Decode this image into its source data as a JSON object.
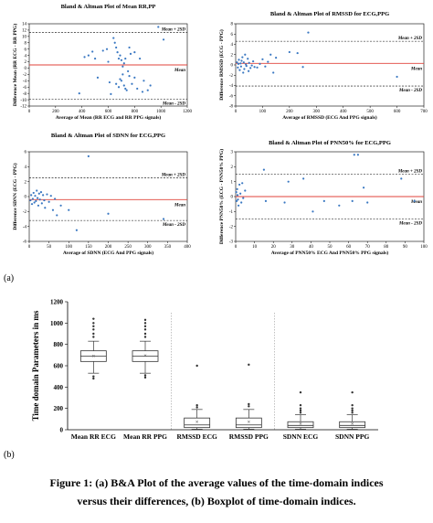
{
  "figure": {
    "label_a": "(a)",
    "label_b": "(b)",
    "caption_line1": "Figure 1: (a) B&A Plot of the average values of the time-domain indices",
    "caption_line2": "versus their differences, (b) Boxplot of time-domain indices."
  },
  "colors": {
    "points": "#3a78c2",
    "mean_line": "#e0433b",
    "box_line": "#333333",
    "boxplot_mean": "#555555"
  },
  "chart_data": [
    {
      "type": "scatter",
      "id": "ba_rr",
      "title": "Bland & Altman Plot of Mean RR,PP",
      "xlabel": "Average of Mean (RR ECG and RR PPG signals)",
      "ylabel": "Difference Mean (RR ECG - RR PPG)",
      "xlim": [
        0,
        1200
      ],
      "ylim": [
        -12,
        14
      ],
      "xticks": [
        0,
        200,
        400,
        600,
        800,
        1000,
        1200
      ],
      "yticks": [
        -12,
        -10,
        -8,
        -6,
        -4,
        -2,
        0,
        2,
        4,
        6,
        8,
        10,
        12,
        14
      ],
      "lines": [
        {
          "name": "Mean + 2SD",
          "y": 11.2,
          "style": "dashed"
        },
        {
          "name": "Mean",
          "y": 1,
          "style": "solid"
        },
        {
          "name": "Mean - 2SD",
          "y": -9.8,
          "style": "dashed"
        }
      ],
      "points": [
        [
          380,
          -8
        ],
        [
          420,
          3.5
        ],
        [
          450,
          4
        ],
        [
          480,
          5.2
        ],
        [
          500,
          3
        ],
        [
          520,
          -3
        ],
        [
          560,
          5.5
        ],
        [
          590,
          6
        ],
        [
          600,
          2
        ],
        [
          610,
          -4.5
        ],
        [
          620,
          -8.2
        ],
        [
          640,
          9.5
        ],
        [
          650,
          8
        ],
        [
          660,
          6.5
        ],
        [
          660,
          -5
        ],
        [
          670,
          5
        ],
        [
          680,
          3
        ],
        [
          680,
          -6
        ],
        [
          690,
          4
        ],
        [
          690,
          -3.5
        ],
        [
          700,
          2.5
        ],
        [
          700,
          -4
        ],
        [
          710,
          0.5
        ],
        [
          710,
          -2
        ],
        [
          720,
          1.5
        ],
        [
          720,
          -5.5
        ],
        [
          730,
          3
        ],
        [
          730,
          -6.5
        ],
        [
          740,
          -7
        ],
        [
          750,
          -1
        ],
        [
          760,
          -2.5
        ],
        [
          760,
          6.5
        ],
        [
          770,
          4.5
        ],
        [
          780,
          -5
        ],
        [
          800,
          -3
        ],
        [
          800,
          5
        ],
        [
          820,
          -6.5
        ],
        [
          840,
          3
        ],
        [
          870,
          -4
        ],
        [
          900,
          -7
        ],
        [
          920,
          -5.5
        ],
        [
          980,
          13
        ],
        [
          1020,
          9
        ],
        [
          860,
          -7.5
        ]
      ]
    },
    {
      "type": "scatter",
      "id": "ba_rmssd",
      "title": "Bland & Altman Plot of RMSSD for ECG,PPG",
      "xlabel": "Average of RMSSD (ECG And PPG signals)",
      "ylabel": "Difference RMSSD (ECG - PPG)",
      "xlim": [
        0,
        700
      ],
      "ylim": [
        -8,
        8
      ],
      "xticks": [
        0,
        100,
        200,
        300,
        400,
        500,
        600,
        700
      ],
      "yticks": [
        -8,
        -6,
        -4,
        -2,
        0,
        2,
        4,
        6,
        8
      ],
      "lines": [
        {
          "name": "Mean + 2SD",
          "y": 4.6,
          "style": "dashed"
        },
        {
          "name": "Mean",
          "y": 0.3,
          "style": "solid"
        },
        {
          "name": "Mean - 2SD",
          "y": -4.1,
          "style": "dashed"
        }
      ],
      "points": [
        [
          5,
          0.5
        ],
        [
          8,
          -0.5
        ],
        [
          10,
          0.2
        ],
        [
          12,
          1
        ],
        [
          15,
          -1
        ],
        [
          18,
          0.3
        ],
        [
          20,
          -0.3
        ],
        [
          22,
          0.8
        ],
        [
          25,
          1.5
        ],
        [
          28,
          -1.5
        ],
        [
          30,
          0.5
        ],
        [
          32,
          -0.8
        ],
        [
          35,
          2
        ],
        [
          38,
          0.1
        ],
        [
          40,
          -0.2
        ],
        [
          45,
          1.2
        ],
        [
          48,
          -1.2
        ],
        [
          50,
          0.4
        ],
        [
          55,
          -0.6
        ],
        [
          60,
          -0.1
        ],
        [
          65,
          0.7
        ],
        [
          70,
          -0.4
        ],
        [
          80,
          -0.5
        ],
        [
          90,
          0.2
        ],
        [
          100,
          1.1
        ],
        [
          110,
          -0.3
        ],
        [
          120,
          0.6
        ],
        [
          130,
          2
        ],
        [
          140,
          -1.5
        ],
        [
          150,
          1.4
        ],
        [
          200,
          2.5
        ],
        [
          230,
          2.3
        ],
        [
          250,
          -0.4
        ],
        [
          270,
          6.3
        ],
        [
          600,
          -2.3
        ]
      ]
    },
    {
      "type": "scatter",
      "id": "ba_sdnn",
      "title": "Bland & Altman Plot of SDNN for ECG,PPG",
      "xlabel": "Average of SDNN (ECG And PPG signals)",
      "ylabel": "Difference SDNN (ECG - PPG)",
      "xlim": [
        0,
        400
      ],
      "ylim": [
        -6,
        6
      ],
      "xticks": [
        0,
        50,
        100,
        150,
        200,
        250,
        300,
        350,
        400
      ],
      "yticks": [
        -6,
        -4,
        -2,
        0,
        2,
        4,
        6
      ],
      "lines": [
        {
          "name": "Mean + 2SD",
          "y": 2.5,
          "style": "dashed"
        },
        {
          "name": "Mean",
          "y": -0.4,
          "style": "solid"
        },
        {
          "name": "Mean - 2SD",
          "y": -3.2,
          "style": "dashed"
        }
      ],
      "points": [
        [
          3,
          -0.5
        ],
        [
          5,
          0.2
        ],
        [
          7,
          -1
        ],
        [
          9,
          -0.3
        ],
        [
          11,
          0.5
        ],
        [
          13,
          -0.8
        ],
        [
          15,
          0.1
        ],
        [
          17,
          -0.6
        ],
        [
          19,
          0.8
        ],
        [
          21,
          -0.2
        ],
        [
          23,
          -1.2
        ],
        [
          25,
          0.4
        ],
        [
          27,
          -0.4
        ],
        [
          30,
          0.6
        ],
        [
          32,
          -0.9
        ],
        [
          35,
          0.2
        ],
        [
          38,
          -0.5
        ],
        [
          40,
          -1.5
        ],
        [
          45,
          0.3
        ],
        [
          50,
          -0.7
        ],
        [
          55,
          0.1
        ],
        [
          60,
          -1.8
        ],
        [
          65,
          -0.3
        ],
        [
          70,
          -2.5
        ],
        [
          80,
          -1.2
        ],
        [
          100,
          -1.8
        ],
        [
          120,
          -4.5
        ],
        [
          150,
          5.4
        ],
        [
          200,
          -2.3
        ],
        [
          340,
          -3
        ]
      ]
    },
    {
      "type": "scatter",
      "id": "ba_pnn50",
      "title": "Bland & Altman Plot of PNN50% for ECG,PPG",
      "xlabel": "Average of PNN50% ECG And PNN50% PPG signals)",
      "ylabel": "Difference PNN50% (ECG - PNN50% PPG)",
      "xlim": [
        0,
        100
      ],
      "ylim": [
        -3,
        3
      ],
      "xticks": [
        0,
        10,
        20,
        30,
        40,
        50,
        60,
        70,
        80,
        90,
        100
      ],
      "yticks": [
        -3,
        -2,
        -1,
        0,
        1,
        2,
        3
      ],
      "lines": [
        {
          "name": "Mean + 2SD",
          "y": 1.5,
          "style": "dashed"
        },
        {
          "name": "Mean",
          "y": 0,
          "style": "solid"
        },
        {
          "name": "Mean - 2SD",
          "y": -1.5,
          "style": "dashed"
        }
      ],
      "points": [
        [
          0.3,
          0.3
        ],
        [
          0.5,
          -0.3
        ],
        [
          0.8,
          0.5
        ],
        [
          1,
          0.1
        ],
        [
          1.2,
          -0.2
        ],
        [
          1.5,
          -0.6
        ],
        [
          2,
          0.8
        ],
        [
          2.5,
          0.2
        ],
        [
          3,
          -0.4
        ],
        [
          3.5,
          0.9
        ],
        [
          4,
          -0.1
        ],
        [
          5,
          0.4
        ],
        [
          15,
          1.8
        ],
        [
          16,
          -0.3
        ],
        [
          26,
          -0.4
        ],
        [
          28,
          1.0
        ],
        [
          36,
          1.2
        ],
        [
          41,
          -1.0
        ],
        [
          47,
          -0.3
        ],
        [
          55,
          -0.6
        ],
        [
          62,
          -0.3
        ],
        [
          63,
          2.8
        ],
        [
          65,
          2.8
        ],
        [
          68,
          0.6
        ],
        [
          70,
          -0.4
        ],
        [
          88,
          1.2
        ],
        [
          95,
          -0.3
        ]
      ]
    },
    {
      "type": "boxplot",
      "id": "boxplot",
      "title": "",
      "xlabel": "",
      "ylabel": "Time domain Parameters in ms",
      "ylim": [
        0,
        1200
      ],
      "yticks": [
        0,
        200,
        400,
        600,
        800,
        1000,
        1200
      ],
      "categories": [
        "Mean RR ECG",
        "Mean RR PPG",
        "RMSSD ECG",
        "RMSSD PPG",
        "SDNN ECG",
        "SDNN PPG"
      ],
      "boxes": [
        {
          "name": "Mean RR ECG",
          "min": 530,
          "q1": 640,
          "median": 690,
          "q3": 740,
          "max": 830,
          "mean": 690,
          "outliers": [
            480,
            500,
            870,
            900,
            940,
            970,
            1000,
            1040
          ]
        },
        {
          "name": "Mean RR PPG",
          "min": 530,
          "q1": 640,
          "median": 690,
          "q3": 740,
          "max": 830,
          "mean": 695,
          "outliers": [
            490,
            510,
            870,
            900,
            940,
            970,
            1000,
            1030
          ]
        },
        {
          "name": "RMSSD ECG",
          "min": 5,
          "q1": 20,
          "median": 45,
          "q3": 110,
          "max": 190,
          "mean": 75,
          "outliers": [
            210,
            230,
            600
          ]
        },
        {
          "name": "RMSSD PPG",
          "min": 5,
          "q1": 20,
          "median": 45,
          "q3": 110,
          "max": 190,
          "mean": 75,
          "outliers": [
            220,
            240,
            610
          ]
        },
        {
          "name": "SDNN ECG",
          "min": 5,
          "q1": 20,
          "median": 40,
          "q3": 75,
          "max": 140,
          "mean": 55,
          "outliers": [
            160,
            180,
            200,
            230,
            350
          ]
        },
        {
          "name": "SDNN PPG",
          "min": 5,
          "q1": 20,
          "median": 40,
          "q3": 75,
          "max": 140,
          "mean": 55,
          "outliers": [
            160,
            180,
            200,
            230,
            350
          ]
        }
      ],
      "separators_after": [
        1,
        3
      ]
    }
  ]
}
